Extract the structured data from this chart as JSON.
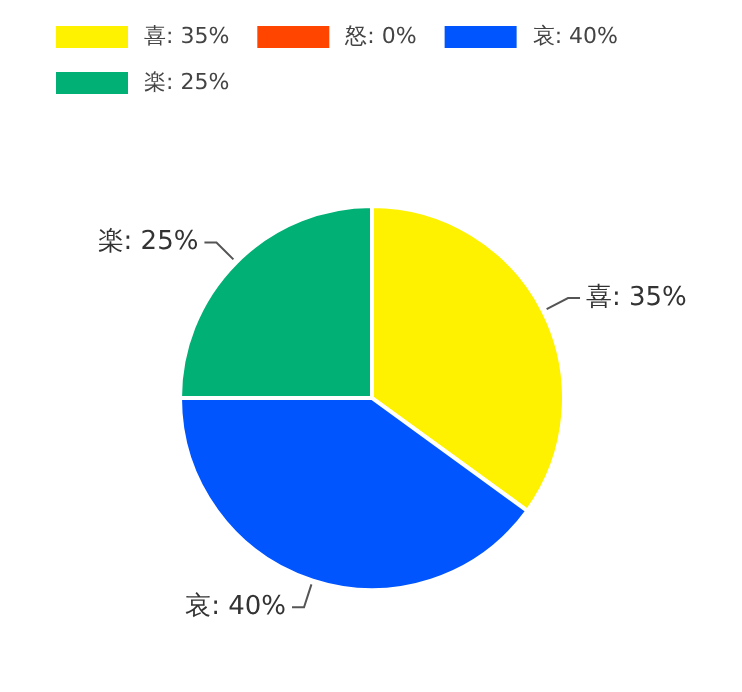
{
  "chart_data": {
    "type": "pie",
    "categories": [
      "喜: 35%",
      "怒: 0%",
      "哀: 40%",
      "楽: 25%"
    ],
    "values": [
      35,
      0,
      40,
      25
    ],
    "colors": [
      "#fff200",
      "#ff4500",
      "#0055ff",
      "#00b074"
    ],
    "legend": "top left"
  }
}
